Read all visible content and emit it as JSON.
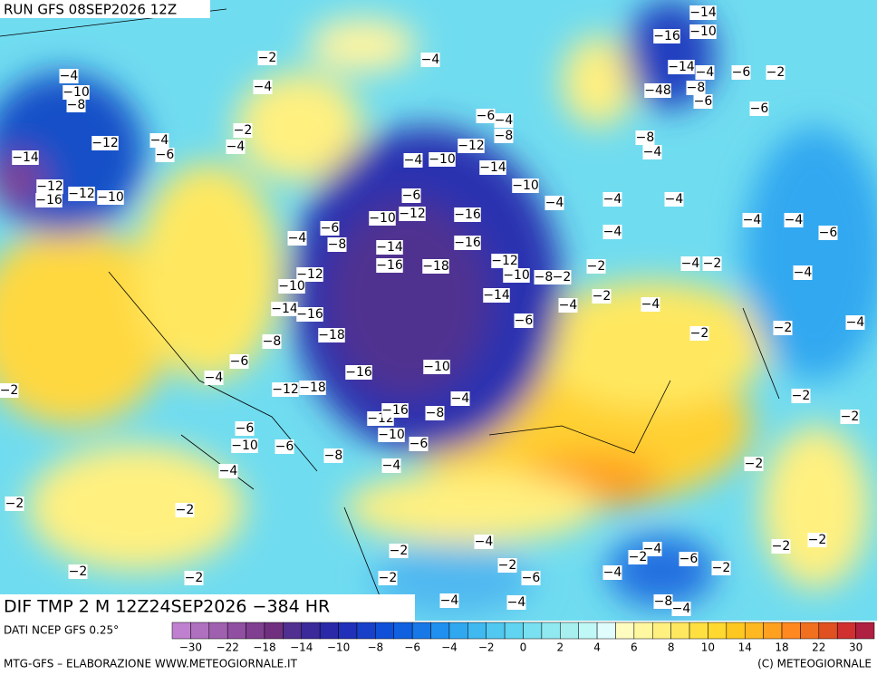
{
  "header": {
    "title": "RUN GFS 08SEP2026 12Z"
  },
  "map": {
    "labels": [
      "−14",
      "−10",
      "−16",
      "−2",
      "−4",
      "−14",
      "−4",
      "−6",
      "−2",
      "−4",
      "−10",
      "−8",
      "−4",
      "−48",
      "−8",
      "−6",
      "−6",
      "−2",
      "−4",
      "−4",
      "−12",
      "−6",
      "−14",
      "−6",
      "−4",
      "−8",
      "−12",
      "−4",
      "−10",
      "−14",
      "−8",
      "−4",
      "−10",
      "−12",
      "−12",
      "−10",
      "−16",
      "−6",
      "−4",
      "−4",
      "−4",
      "−10",
      "−12",
      "−16",
      "−6",
      "−4",
      "−8",
      "−16",
      "−4",
      "−4",
      "−4",
      "−6",
      "−14",
      "−16",
      "−18",
      "−12",
      "−10",
      "−8",
      "−2",
      "−2",
      "−4",
      "−2",
      "−12",
      "−10",
      "−14",
      "−2",
      "−4",
      "−4",
      "−4",
      "−14",
      "−16",
      "−6",
      "−2",
      "−4",
      "−18",
      "−8",
      "−2",
      "−6",
      "−16",
      "−10",
      "−4",
      "−12",
      "−18",
      "−4",
      "−2",
      "−2",
      "−12",
      "−16",
      "−8",
      "−2",
      "−6",
      "−10",
      "−6",
      "−8",
      "−10",
      "−6",
      "−4",
      "−4",
      "−2",
      "−2",
      "−2",
      "−4",
      "−4",
      "−2",
      "−6",
      "−2",
      "−2",
      "−2",
      "−2",
      "−6",
      "−4",
      "−2",
      "−2",
      "−2",
      "−2",
      "−4",
      "−4",
      "−8",
      "−4"
    ]
  },
  "footer": {
    "field": "DIF TMP 2 M 12Z24SEP2026 −384 HR",
    "source": "DATI NCEP GFS 0.25°",
    "credit": "MTG-GFS – ELABORAZIONE WWW.METEOGIORNALE.IT",
    "copyright": "(C) METEOGIORNALE"
  },
  "colorbar": {
    "colors": [
      "#c080d0",
      "#b070c0",
      "#a060b0",
      "#904fa0",
      "#803f90",
      "#70307f",
      "#503090",
      "#3a2a9a",
      "#2a2aa8",
      "#2030b8",
      "#1840c8",
      "#1050d8",
      "#1060e0",
      "#1878e8",
      "#2090f0",
      "#30a8f0",
      "#40b8f0",
      "#50c8f0",
      "#60d4f0",
      "#78e0f0",
      "#90e8f0",
      "#a8f0f0",
      "#c0f8f8",
      "#e0fcfc",
      "#fffcc0",
      "#fff8a0",
      "#fff080",
      "#ffe860",
      "#ffe040",
      "#ffd830",
      "#ffc820",
      "#ffb820",
      "#ffa020",
      "#ff8820",
      "#f07020",
      "#e05020",
      "#d03030",
      "#b02040"
    ],
    "labels": [
      "−30",
      "−22",
      "−18",
      "−14",
      "−10",
      "−8",
      "−6",
      "−4",
      "−2",
      "0",
      "2",
      "4",
      "6",
      "8",
      "10",
      "14",
      "18",
      "22",
      "30"
    ]
  }
}
